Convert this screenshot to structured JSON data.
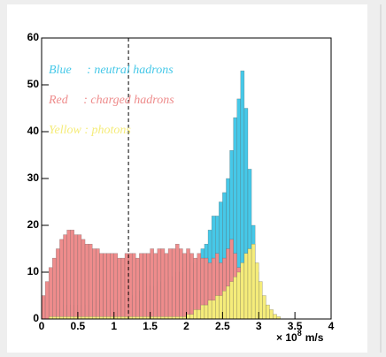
{
  "chart_data": {
    "type": "histogram",
    "bins": [
      0,
      0.05,
      0.1,
      0.15,
      0.2,
      0.25,
      0.3,
      0.35,
      0.4,
      0.45,
      0.5,
      0.55,
      0.6,
      0.65,
      0.7,
      0.75,
      0.8,
      0.85,
      0.9,
      0.95,
      1,
      1.05,
      1.1,
      1.15,
      1.2,
      1.25,
      1.3,
      1.35,
      1.4,
      1.45,
      1.5,
      1.55,
      1.6,
      1.65,
      1.7,
      1.75,
      1.8,
      1.85,
      1.9,
      1.95,
      2,
      2.05,
      2.1,
      2.15,
      2.2,
      2.25,
      2.3,
      2.35,
      2.4,
      2.45,
      2.5,
      2.55,
      2.6,
      2.65,
      2.7,
      2.75,
      2.8,
      2.85,
      2.9,
      2.95,
      3,
      3.05,
      3.1,
      3.15,
      3.2,
      3.25,
      3.3,
      3.35,
      3.4,
      3.45,
      3.5
    ],
    "series": [
      {
        "name": "Blue     : neutral hadrons",
        "color": "#46c8e8",
        "values": [
          0,
          0,
          0,
          1,
          2,
          2,
          3,
          3,
          3,
          3,
          3,
          3,
          3,
          4,
          4,
          4,
          4,
          4,
          4,
          4,
          4,
          4,
          5,
          5,
          5,
          5,
          6,
          6,
          6,
          7,
          7,
          7,
          8,
          8,
          8,
          9,
          9,
          10,
          10,
          11,
          11,
          12,
          12,
          13,
          15,
          16,
          19,
          22,
          22,
          25,
          27,
          30,
          36,
          43,
          47,
          53,
          45,
          32,
          20,
          10,
          4,
          2,
          1,
          0,
          0,
          0,
          0,
          0,
          0,
          0
        ]
      },
      {
        "name": "Red     : charged hadrons",
        "color": "#ee8c8c",
        "values": [
          5,
          8,
          11,
          13,
          15,
          17,
          18,
          19,
          19,
          18,
          18,
          17,
          16,
          16,
          15,
          15,
          14,
          14,
          14,
          14,
          14,
          13,
          13,
          14,
          14,
          14,
          13,
          14,
          14,
          14,
          15,
          14,
          15,
          15,
          14,
          15,
          15,
          16,
          15,
          14,
          15,
          14,
          13,
          14,
          13,
          13,
          12,
          13,
          14,
          12,
          13,
          15,
          17,
          14,
          11,
          6,
          2,
          1,
          0,
          0,
          0,
          0,
          0,
          0,
          0,
          0,
          0,
          0,
          0,
          0
        ]
      },
      {
        "name": "Yellow : photons",
        "color": "#f5ec7a",
        "values": [
          0,
          0,
          0.5,
          0.5,
          0.5,
          0.5,
          0.5,
          0.5,
          0.5,
          0.5,
          0.5,
          0.5,
          0.5,
          0.5,
          0.5,
          0.5,
          0.5,
          0.5,
          0.5,
          0.5,
          0.5,
          0.5,
          0.5,
          0.5,
          0.5,
          0.5,
          0.5,
          0.5,
          0.5,
          0.5,
          0.5,
          0.5,
          0.5,
          0.5,
          0.5,
          0.5,
          0.5,
          0.5,
          0.5,
          0.5,
          1,
          1,
          2,
          2,
          3,
          3,
          4,
          4,
          5,
          5,
          6,
          7,
          8,
          9,
          10,
          12,
          14,
          15,
          16,
          12,
          8,
          5,
          3,
          2,
          1,
          0.5,
          0,
          0,
          0,
          0
        ]
      }
    ],
    "xlim": [
      0,
      4
    ],
    "ylim": [
      0,
      60
    ],
    "xticks": [
      0,
      0.5,
      1,
      1.5,
      2,
      2.5,
      3,
      3.5,
      4
    ],
    "yticks": [
      0,
      10,
      20,
      30,
      40,
      50,
      60
    ],
    "x_label": "× 10",
    "x_label_exponent": "8",
    "x_label_unit": "m/s",
    "vline": 1.2
  }
}
